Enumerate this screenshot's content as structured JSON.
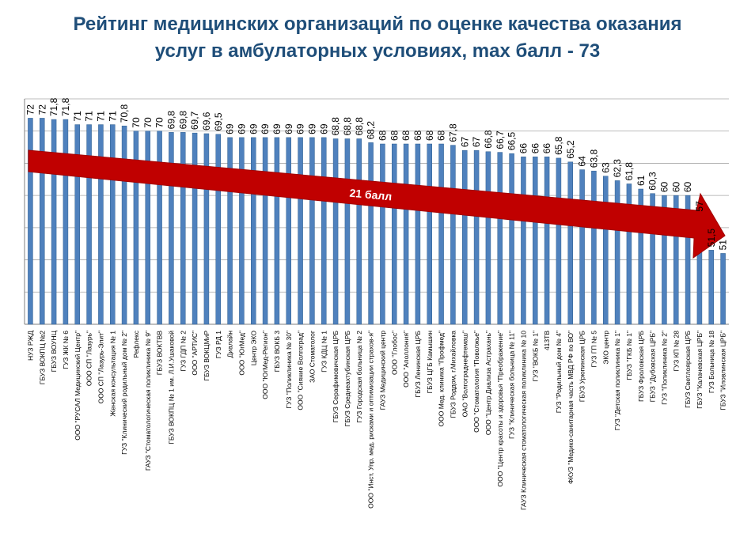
{
  "chart_data": {
    "type": "bar",
    "title_line1": "Рейтинг медицинских организаций по оценке качества оказания",
    "title_line2": "услуг в амбулаторных условиях, max балл - 73",
    "xlabel": "",
    "ylabel": "",
    "ylim": [
      40,
      75
    ],
    "grid": true,
    "legend": "none",
    "bar_color": "#4f81bd",
    "bar_edge_color": "#2f5f8f",
    "grid_color": "#a6a6a6",
    "arrow_color": "#c00000",
    "arrow_label": "21 балл",
    "categories": [
      "НУЗ РЖД",
      "ГБУЗ ВОКПЦ №2",
      "ГБУЗ ВОУНЦ",
      "ГУЗ ЖК № 6",
      "ООО \"РУСАЛ Медицинский Центр\"",
      "ООО СП \"Лазурь\"",
      "ООО СП \"Лазурь-Элит\"",
      "Женская консультация № 1",
      "ГУЗ \"Клинический родильный дом № 2\"",
      "Рефлекс",
      "ГАУЗ \"Стоматологическая поликлиника № 9\"",
      "ГБУЗ ВОКТВВ",
      "ГБУЗ ВОКПЦ № 1 им. Л.И.Ушаковой",
      "ГУЗ ГДП № 2",
      "ООО \"АРТИС\"",
      "ГБУЗ ВОКЦМиР",
      "ГУЗ РД 1",
      "Диалайн",
      "ООО \"ЮгМед\"",
      "Центр ЭКО",
      "ООО \"ЮгМед-Регион\"",
      "ГБУЗ ВОКБ 3",
      "ГУЗ \"Поликлиника № 30\"",
      "ООО \"Сияние Волгоград\"",
      "ЗАО Стоматолог",
      "ГУЗ КДЦ № 1",
      "ГБУЗ Серафимовичская ЦРБ",
      "ГБУЗ Среднеахтубинская ЦРБ",
      "ГУЗ Городская больница № 2",
      "ООО \"Инст. Упр. мед. рисками и оптимизации страхов-я\"",
      "ГАУЗ Медицинский центр",
      "ООО \"Глобос\"",
      "ООО \"Аполлония\"",
      "ГБУЗ Ленинская ЦРБ",
      "ГБУЗ ЦГБ Камышин",
      "ООО Мед. клиника \"Профмед\"",
      "ГБУЗ Роддом, г.Михайловка",
      "ОАО \"Волгограднефтемаш\"",
      "ООО \"Стоматология \"Поволжье\"",
      "ООО \"Центр Диализа Астрахань\"",
      "ООО \"Центр красоты и здоровья \"Преображение\"",
      "ГУЗ \"Клиническая больница № 11\"",
      "ГАУЗ Клиническая стоматологическая поликлиника № 10",
      "ГУЗ \"ВОКБ № 1\"",
      "413ТВ",
      "ГУЗ \"Родильный дом № 4\"",
      "ФКУЗ \"Медико-санитарная часть МВД РФ по ВО\"",
      "ГБУЗ Урюпинская ЦРБ",
      "ГУЗ ГП № 5",
      "ЭКО центр",
      "ГУЗ \"Детская поликлиника № 1\"",
      "ГБУЗ \"ГКБ № 1\"",
      "ГБУЗ Фроловская ЦРБ",
      "ГБУЗ \"Дубовская ЦРБ\"",
      "ГУЗ \"Поликлиника № 2\"",
      "ГУЗ КП № 28",
      "ГБУЗ Светлоярская ЦРБ",
      "ГБУЗ \"Калачевская ЦРБ\"",
      "ГУЗ Больница № 18",
      "ГБУЗ \"Иловлинская ЦРБ\""
    ],
    "values": [
      72,
      72,
      71.8,
      71.8,
      71,
      71,
      71,
      71,
      70.8,
      70,
      70,
      70,
      69.8,
      69.8,
      69.7,
      69.6,
      69.5,
      69,
      69,
      69,
      69,
      69,
      69,
      69,
      69,
      69,
      68.8,
      68.8,
      68.8,
      68.2,
      68,
      68,
      68,
      68,
      68,
      68,
      67.8,
      67,
      67,
      66.8,
      66.7,
      66.5,
      66,
      66,
      66,
      65.8,
      65.2,
      64,
      63.8,
      63,
      62.3,
      61.8,
      61,
      60.3,
      60,
      60,
      60,
      57,
      51.5,
      51
    ],
    "value_labels": [
      "72",
      "72",
      "71,8",
      "71,8",
      "71",
      "71",
      "71",
      "71",
      "70,8",
      "70",
      "70",
      "70",
      "69,8",
      "69,8",
      "69,7",
      "69,6",
      "69,5",
      "69",
      "69",
      "69",
      "69",
      "69",
      "69",
      "69",
      "69",
      "69",
      "68,8",
      "68,8",
      "68,8",
      "68,2",
      "68",
      "68",
      "68",
      "68",
      "68",
      "68",
      "67,8",
      "67",
      "67",
      "66,8",
      "66,7",
      "66,5",
      "66",
      "66",
      "66",
      "65,8",
      "65,2",
      "64",
      "63,8",
      "63",
      "62,3",
      "61,8",
      "61",
      "60,3",
      "60",
      "60",
      "60",
      "57",
      "51,5",
      "51"
    ]
  }
}
